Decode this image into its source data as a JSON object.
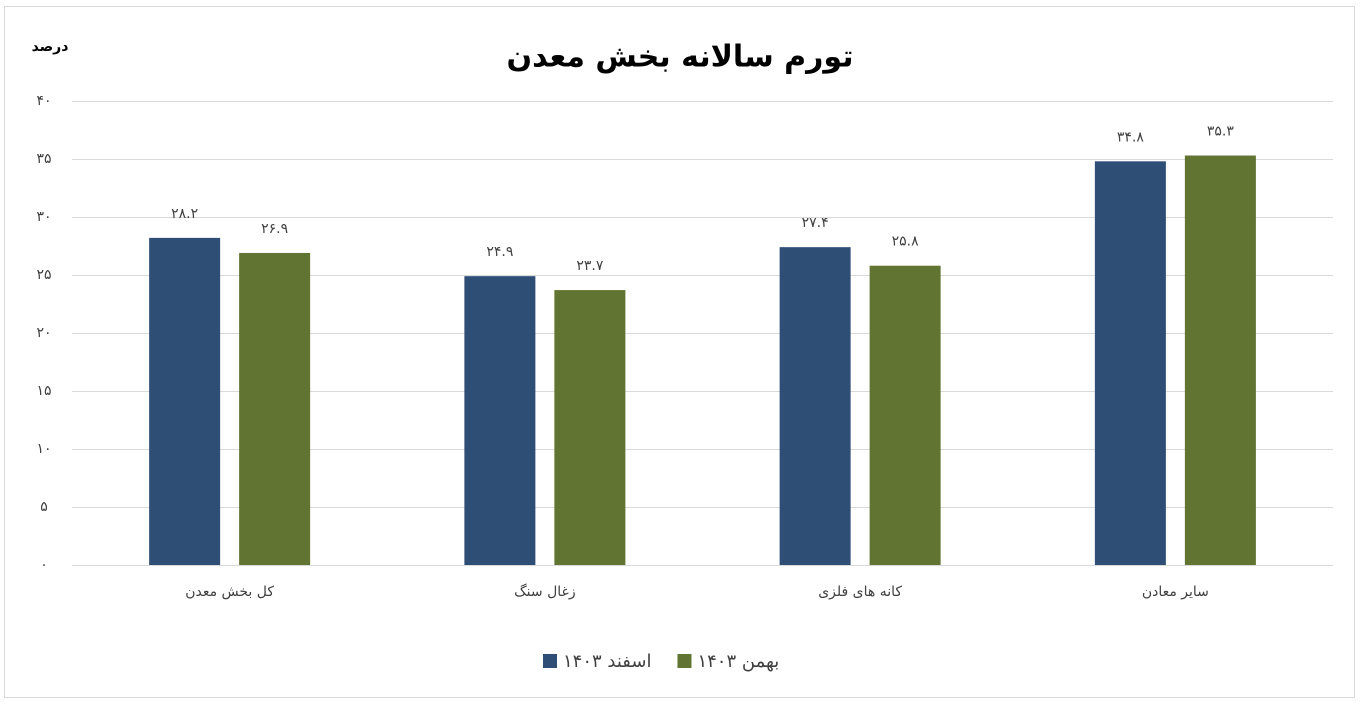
{
  "chart_data": {
    "type": "bar",
    "title": "تورم سالانه بخش معدن",
    "y_label": "درصد",
    "categories": [
      "کل بخش معدن",
      "زغال سنگ",
      "کانه های فلزی",
      "سایر معادن"
    ],
    "series": [
      {
        "name": "اسفند ۱۴۰۳",
        "color": "#2e4e76",
        "values": [
          28.2,
          24.9,
          27.4,
          34.8
        ],
        "value_labels": [
          "۲۸.۲",
          "۲۴.۹",
          "۲۷.۴",
          "۳۴.۸"
        ]
      },
      {
        "name": "بهمن ۱۴۰۳",
        "color": "#627431",
        "values": [
          26.9,
          23.7,
          25.8,
          35.3
        ],
        "value_labels": [
          "۲۶.۹",
          "۲۳.۷",
          "۲۵.۸",
          "۳۵.۳"
        ]
      }
    ],
    "ylim": [
      0,
      40
    ],
    "yticks": [
      {
        "value": 0,
        "label": "۰"
      },
      {
        "value": 5,
        "label": "۵"
      },
      {
        "value": 10,
        "label": "۱۰"
      },
      {
        "value": 15,
        "label": "۱۵"
      },
      {
        "value": 20,
        "label": "۲۰"
      },
      {
        "value": 25,
        "label": "۲۵"
      },
      {
        "value": 30,
        "label": "۳۰"
      },
      {
        "value": 35,
        "label": "۳۵"
      },
      {
        "value": 40,
        "label": "۴۰"
      }
    ],
    "grid": true
  }
}
